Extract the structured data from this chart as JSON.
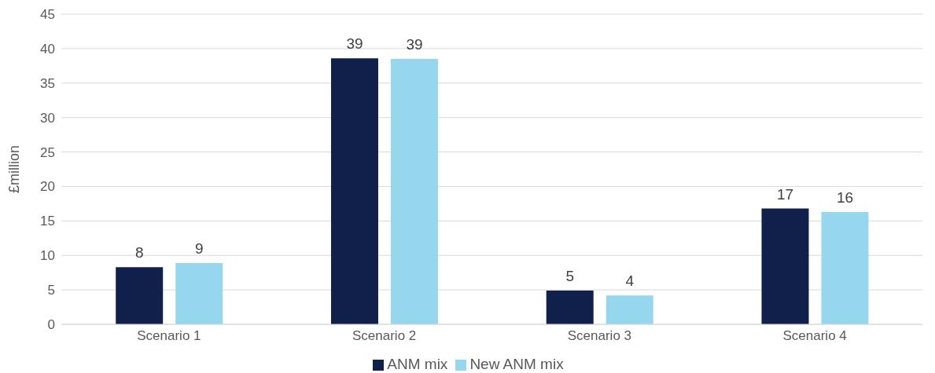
{
  "chart_data": {
    "type": "bar",
    "ylabel": "£million",
    "categories": [
      "Scenario 1",
      "Scenario 2",
      "Scenario 3",
      "Scenario 4"
    ],
    "series": [
      {
        "name": "ANM mix",
        "color": "#10204b",
        "values": [
          8.3,
          38.6,
          4.9,
          16.8
        ],
        "value_labels": [
          "8",
          "39",
          "5",
          "17"
        ]
      },
      {
        "name": "New ANM mix",
        "color": "#97d7ee",
        "values": [
          8.9,
          38.5,
          4.2,
          16.3
        ],
        "value_labels": [
          "9",
          "39",
          "4",
          "16"
        ]
      }
    ],
    "ylim": [
      0,
      45
    ],
    "yticks": [
      0,
      5,
      10,
      15,
      20,
      25,
      30,
      35,
      40,
      45
    ],
    "grid": "y",
    "legend": "bottom"
  }
}
